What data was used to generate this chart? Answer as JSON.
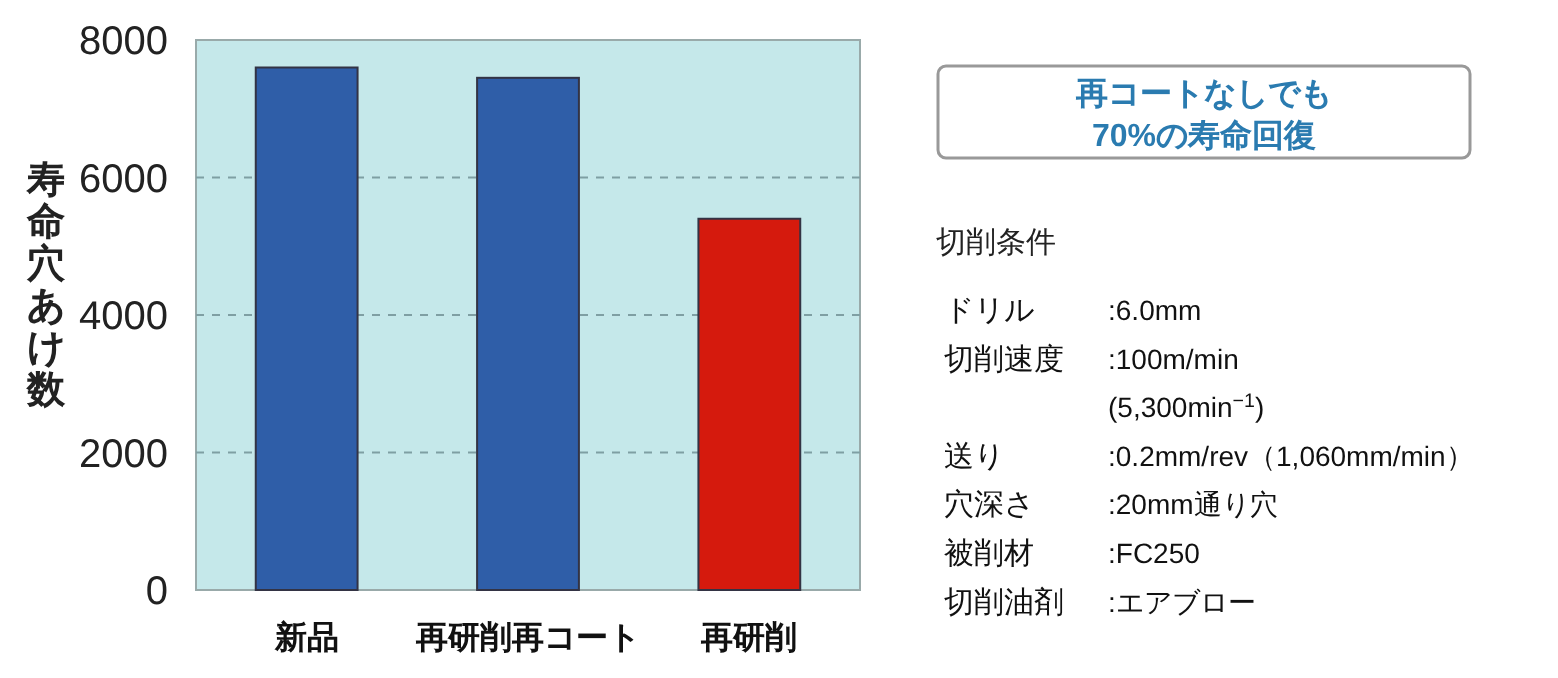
{
  "chart_data": {
    "type": "bar",
    "ylabel": "寿命穴あけ数",
    "categories": [
      "新品",
      "再研削再コート",
      "再研削"
    ],
    "values": [
      7600,
      7450,
      5400
    ],
    "colors": [
      "#2f5ea8",
      "#2f5ea8",
      "#d51a0d"
    ],
    "ylim": [
      0,
      8000
    ],
    "yticks": [
      0,
      2000,
      4000,
      6000,
      8000
    ],
    "grid": "y",
    "annotations": [
      "再コートなしでも\n70%の寿命回復",
      "切削条件",
      "ドリル\t:6.0mm",
      "切削速度\t:100m/min",
      "\t(5,300min$^{−1}$)",
      "送り\t:0.2mm/rev（1,060mm/min）",
      "穴深さ\t:20mm通り穴",
      "被削材\t:FC250",
      "切削油剤\t:エアブロー"
    ]
  }
}
